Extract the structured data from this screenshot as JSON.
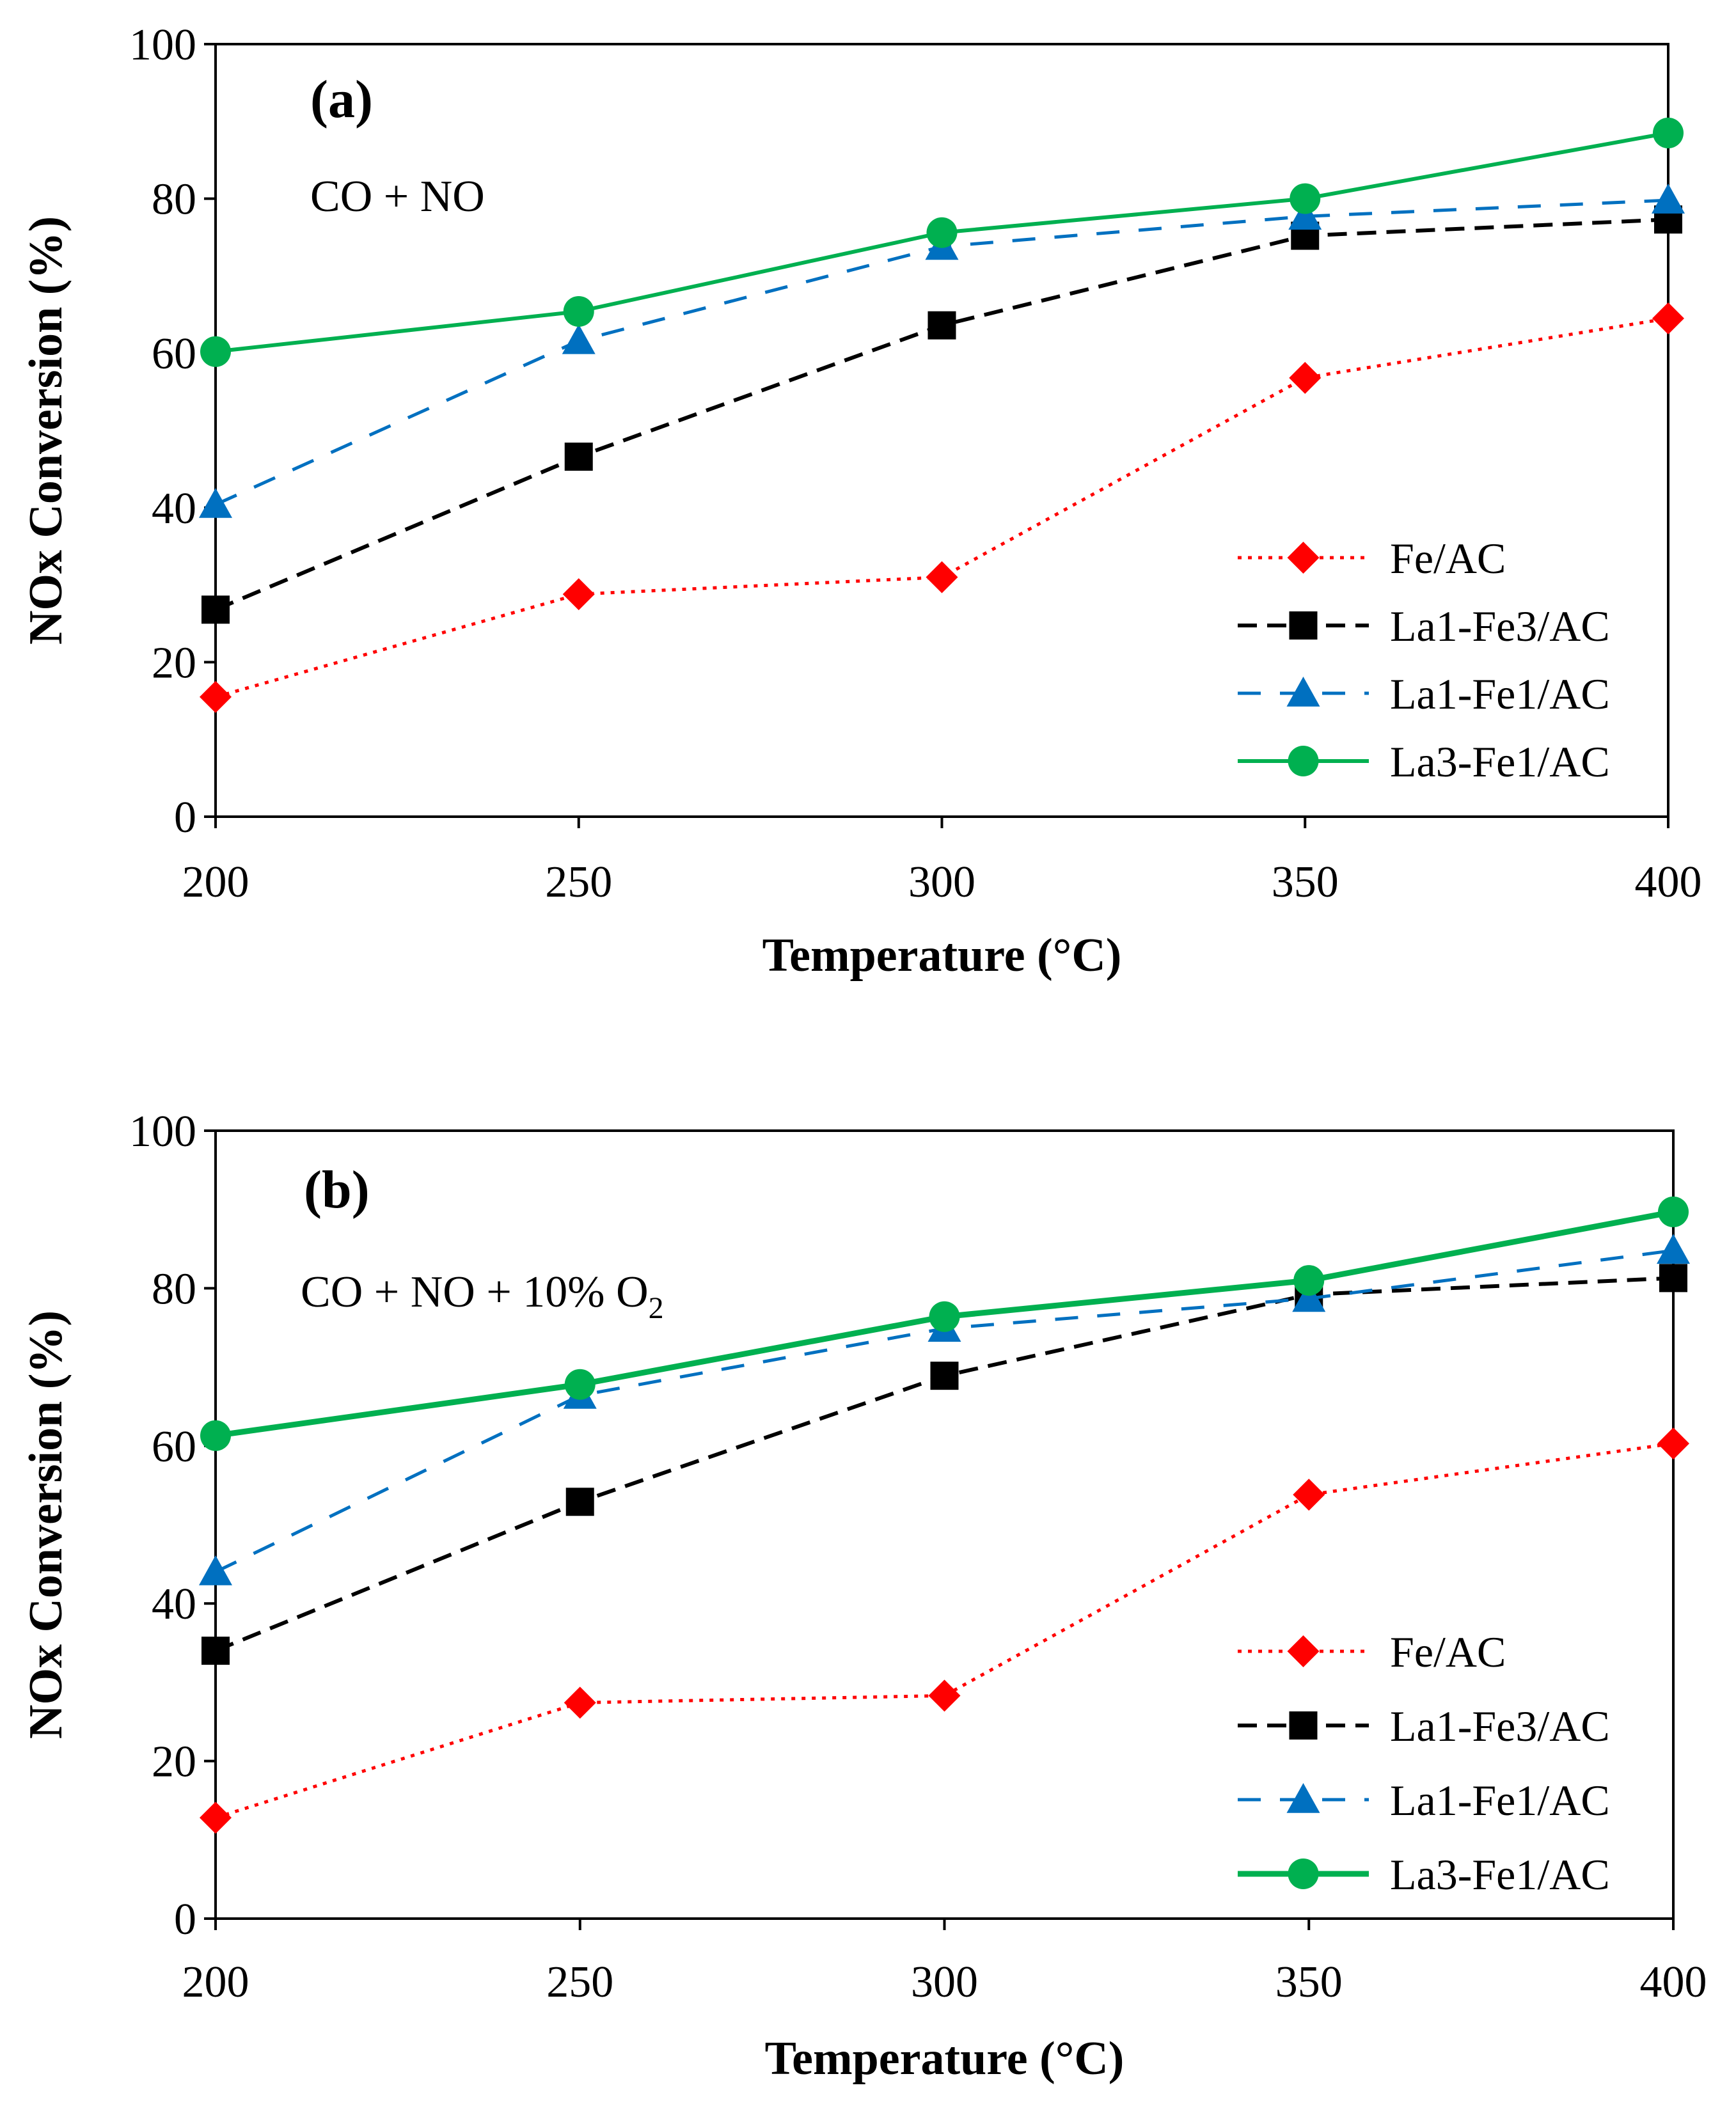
{
  "chart_data": [
    {
      "type": "line",
      "panel_label": "(a)",
      "condition": {
        "text": "CO + NO",
        "subscript": ""
      },
      "xlabel": "Temperature (°C)",
      "ylabel": "NOx Conversion (%)",
      "x": [
        200,
        250,
        300,
        350,
        400
      ],
      "x_ticks": [
        "200",
        "250",
        "300",
        "350",
        "400"
      ],
      "y_ticks": [
        "0",
        "20",
        "40",
        "60",
        "80",
        "100"
      ],
      "xlim": [
        200,
        400
      ],
      "ylim": [
        0,
        100
      ],
      "legend_position": "bottom-right",
      "series": [
        {
          "name": "Fe/AC",
          "values": [
            15.5,
            28.8,
            31,
            56.8,
            64.5
          ],
          "color": "#ff0000",
          "style": "dotted",
          "marker": "diamond"
        },
        {
          "name": "La1-Fe3/AC",
          "values": [
            26.8,
            46.6,
            63.6,
            75.2,
            77.3
          ],
          "color": "#000000",
          "style": "dashed",
          "marker": "square"
        },
        {
          "name": "La1-Fe1/AC",
          "values": [
            40.4,
            61.6,
            73.8,
            77.7,
            79.8
          ],
          "color": "#0070c0",
          "style": "long-dashed",
          "marker": "triangle"
        },
        {
          "name": "La3-Fe1/AC",
          "values": [
            60.2,
            65.4,
            75.6,
            80,
            88.5
          ],
          "color": "#00b050",
          "style": "solid",
          "marker": "circle"
        }
      ]
    },
    {
      "type": "line",
      "panel_label": "(b)",
      "condition": {
        "text": "CO + NO + 10% O",
        "subscript": "2"
      },
      "xlabel": "Temperature (°C)",
      "ylabel": "NOx Conversion (%)",
      "x": [
        200,
        250,
        300,
        350,
        400
      ],
      "x_ticks": [
        "200",
        "250",
        "300",
        "350",
        "400"
      ],
      "y_ticks": [
        "0",
        "20",
        "40",
        "60",
        "80",
        "100"
      ],
      "xlim": [
        200,
        400
      ],
      "ylim": [
        0,
        100
      ],
      "legend_position": "bottom-right",
      "series": [
        {
          "name": "Fe/AC",
          "values": [
            12.8,
            27.4,
            28.3,
            53.8,
            60.3
          ],
          "color": "#ff0000",
          "style": "dotted",
          "marker": "diamond"
        },
        {
          "name": "La1-Fe3/AC",
          "values": [
            34,
            52.9,
            68.9,
            79.2,
            81.3
          ],
          "color": "#000000",
          "style": "dashed",
          "marker": "square"
        },
        {
          "name": "La1-Fe1/AC",
          "values": [
            44,
            66.4,
            74.9,
            78.7,
            84.8
          ],
          "color": "#0070c0",
          "style": "long-dashed",
          "marker": "triangle"
        },
        {
          "name": "La3-Fe1/AC",
          "values": [
            61.3,
            67.8,
            76.4,
            81,
            89.7
          ],
          "color": "#00b050",
          "style": "solid-thick",
          "marker": "circle"
        }
      ]
    }
  ]
}
